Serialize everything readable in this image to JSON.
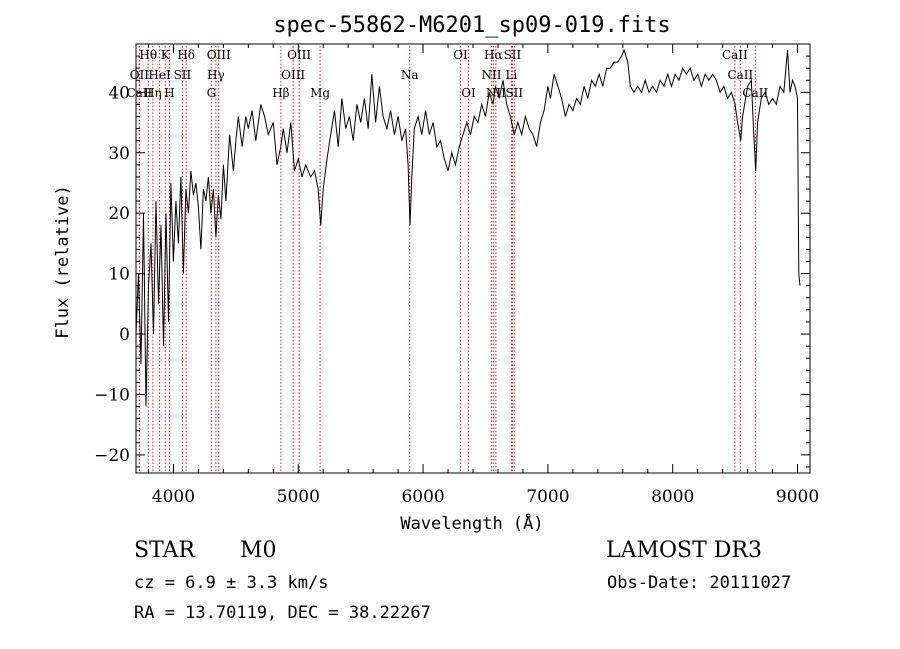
{
  "chart_data": {
    "type": "line",
    "title": "spec-55862-M6201_sp09-019.fits",
    "xlabel": "Wavelength (Å)",
    "ylabel": "Flux (relative)",
    "xlim": [
      3700,
      9100
    ],
    "ylim": [
      -23,
      48
    ],
    "x_ticks": [
      4000,
      5000,
      6000,
      7000,
      8000,
      9000
    ],
    "y_ticks": [
      -20,
      -10,
      0,
      10,
      20,
      30,
      40
    ],
    "grid": false,
    "series": [
      {
        "color": "#000000",
        "points": [
          [
            3700,
            0
          ],
          [
            3720,
            10
          ],
          [
            3740,
            -5
          ],
          [
            3760,
            20
          ],
          [
            3780,
            -12
          ],
          [
            3800,
            8
          ],
          [
            3820,
            15
          ],
          [
            3840,
            0
          ],
          [
            3860,
            22
          ],
          [
            3880,
            5
          ],
          [
            3900,
            18
          ],
          [
            3920,
            -2
          ],
          [
            3940,
            20
          ],
          [
            3960,
            2
          ],
          [
            3980,
            25
          ],
          [
            4000,
            12
          ],
          [
            4020,
            22
          ],
          [
            4040,
            15
          ],
          [
            4060,
            26
          ],
          [
            4080,
            10
          ],
          [
            4100,
            24
          ],
          [
            4120,
            20
          ],
          [
            4140,
            27
          ],
          [
            4160,
            23
          ],
          [
            4180,
            25
          ],
          [
            4200,
            21
          ],
          [
            4220,
            14
          ],
          [
            4240,
            24
          ],
          [
            4260,
            22
          ],
          [
            4280,
            26
          ],
          [
            4300,
            20
          ],
          [
            4320,
            24
          ],
          [
            4340,
            16
          ],
          [
            4360,
            23
          ],
          [
            4380,
            19
          ],
          [
            4400,
            28
          ],
          [
            4420,
            22
          ],
          [
            4450,
            33
          ],
          [
            4480,
            27
          ],
          [
            4500,
            32
          ],
          [
            4520,
            36
          ],
          [
            4550,
            31
          ],
          [
            4580,
            36
          ],
          [
            4600,
            34
          ],
          [
            4630,
            37
          ],
          [
            4660,
            32
          ],
          [
            4700,
            38
          ],
          [
            4730,
            36
          ],
          [
            4760,
            33
          ],
          [
            4800,
            35
          ],
          [
            4830,
            28
          ],
          [
            4860,
            31
          ],
          [
            4880,
            34
          ],
          [
            4910,
            30
          ],
          [
            4940,
            35
          ],
          [
            4970,
            27
          ],
          [
            5000,
            29
          ],
          [
            5030,
            26
          ],
          [
            5060,
            28
          ],
          [
            5100,
            26
          ],
          [
            5130,
            27
          ],
          [
            5160,
            24
          ],
          [
            5180,
            18
          ],
          [
            5200,
            24
          ],
          [
            5230,
            29
          ],
          [
            5260,
            33
          ],
          [
            5290,
            37
          ],
          [
            5320,
            31
          ],
          [
            5350,
            39
          ],
          [
            5380,
            34
          ],
          [
            5410,
            36
          ],
          [
            5440,
            32
          ],
          [
            5470,
            38
          ],
          [
            5500,
            35
          ],
          [
            5530,
            39
          ],
          [
            5560,
            34
          ],
          [
            5590,
            43
          ],
          [
            5620,
            35
          ],
          [
            5650,
            41
          ],
          [
            5680,
            36
          ],
          [
            5710,
            34
          ],
          [
            5740,
            37
          ],
          [
            5770,
            33
          ],
          [
            5800,
            36
          ],
          [
            5830,
            32
          ],
          [
            5860,
            34
          ],
          [
            5880,
            28
          ],
          [
            5895,
            18
          ],
          [
            5910,
            26
          ],
          [
            5930,
            34
          ],
          [
            5960,
            36
          ],
          [
            5990,
            33
          ],
          [
            6020,
            37
          ],
          [
            6050,
            33
          ],
          [
            6080,
            35
          ],
          [
            6110,
            31
          ],
          [
            6140,
            32
          ],
          [
            6170,
            29
          ],
          [
            6200,
            27
          ],
          [
            6230,
            30
          ],
          [
            6260,
            28
          ],
          [
            6290,
            31
          ],
          [
            6320,
            33
          ],
          [
            6350,
            35
          ],
          [
            6380,
            33
          ],
          [
            6410,
            36
          ],
          [
            6440,
            35
          ],
          [
            6470,
            38
          ],
          [
            6500,
            36
          ],
          [
            6530,
            40
          ],
          [
            6560,
            38
          ],
          [
            6580,
            41
          ],
          [
            6610,
            39
          ],
          [
            6640,
            42
          ],
          [
            6670,
            38
          ],
          [
            6700,
            36
          ],
          [
            6730,
            33
          ],
          [
            6760,
            35
          ],
          [
            6790,
            33
          ],
          [
            6820,
            36
          ],
          [
            6850,
            34
          ],
          [
            6880,
            33
          ],
          [
            6910,
            31
          ],
          [
            6940,
            35
          ],
          [
            6970,
            37
          ],
          [
            7000,
            41
          ],
          [
            7020,
            39
          ],
          [
            7050,
            43
          ],
          [
            7080,
            41
          ],
          [
            7110,
            39
          ],
          [
            7140,
            36
          ],
          [
            7170,
            38
          ],
          [
            7200,
            37
          ],
          [
            7230,
            39
          ],
          [
            7260,
            38
          ],
          [
            7290,
            41
          ],
          [
            7320,
            39
          ],
          [
            7350,
            42
          ],
          [
            7380,
            41
          ],
          [
            7410,
            43
          ],
          [
            7440,
            41
          ],
          [
            7470,
            44
          ],
          [
            7500,
            44
          ],
          [
            7530,
            45
          ],
          [
            7560,
            45
          ],
          [
            7590,
            46
          ],
          [
            7610,
            47
          ],
          [
            7640,
            45
          ],
          [
            7660,
            41
          ],
          [
            7690,
            40
          ],
          [
            7720,
            41
          ],
          [
            7750,
            40
          ],
          [
            7780,
            42
          ],
          [
            7810,
            40
          ],
          [
            7840,
            41
          ],
          [
            7870,
            40
          ],
          [
            7900,
            42
          ],
          [
            7930,
            41
          ],
          [
            7960,
            43
          ],
          [
            7990,
            41
          ],
          [
            8020,
            43
          ],
          [
            8050,
            42
          ],
          [
            8080,
            44
          ],
          [
            8110,
            43
          ],
          [
            8140,
            44
          ],
          [
            8170,
            42
          ],
          [
            8200,
            43
          ],
          [
            8230,
            41
          ],
          [
            8260,
            43
          ],
          [
            8290,
            42
          ],
          [
            8320,
            43
          ],
          [
            8350,
            42
          ],
          [
            8380,
            40
          ],
          [
            8410,
            41
          ],
          [
            8440,
            39
          ],
          [
            8470,
            40
          ],
          [
            8500,
            38
          ],
          [
            8520,
            35
          ],
          [
            8545,
            32
          ],
          [
            8560,
            36
          ],
          [
            8600,
            41
          ],
          [
            8630,
            42
          ],
          [
            8650,
            33
          ],
          [
            8665,
            27
          ],
          [
            8680,
            35
          ],
          [
            8710,
            39
          ],
          [
            8740,
            40
          ],
          [
            8770,
            38
          ],
          [
            8800,
            39
          ],
          [
            8830,
            38
          ],
          [
            8860,
            41
          ],
          [
            8890,
            40
          ],
          [
            8920,
            47
          ],
          [
            8940,
            40
          ],
          [
            8960,
            42
          ],
          [
            8980,
            41
          ],
          [
            9000,
            39
          ],
          [
            9010,
            10
          ],
          [
            9020,
            8
          ]
        ]
      }
    ],
    "line_markers": [
      {
        "label": "Hθ",
        "x": 3798,
        "row": 0
      },
      {
        "label": "OII",
        "x": 3727,
        "row": 1
      },
      {
        "label": "CaII",
        "x": 3727,
        "row": 2
      },
      {
        "label": "Hη",
        "x": 3835,
        "row": 2
      },
      {
        "label": "HeI",
        "x": 3889,
        "row": 1
      },
      {
        "label": "K",
        "x": 3934,
        "row": 0
      },
      {
        "label": "SII",
        "x": 4072,
        "row": 1
      },
      {
        "label": "H",
        "x": 3968,
        "row": 2
      },
      {
        "label": "Hδ",
        "x": 4102,
        "row": 0
      },
      {
        "label": "OIII",
        "x": 4363,
        "row": 0
      },
      {
        "label": "Hγ",
        "x": 4340,
        "row": 1
      },
      {
        "label": "G",
        "x": 4304,
        "row": 2
      },
      {
        "label": "Hβ",
        "x": 4861,
        "row": 2
      },
      {
        "label": "OIII",
        "x": 5007,
        "row": 0
      },
      {
        "label": "OIII",
        "x": 4959,
        "row": 1
      },
      {
        "label": "Mg",
        "x": 5175,
        "row": 2
      },
      {
        "label": "Na",
        "x": 5893,
        "row": 1
      },
      {
        "label": "OI",
        "x": 6300,
        "row": 0
      },
      {
        "label": "OI",
        "x": 6364,
        "row": 2
      },
      {
        "label": "Hα",
        "x": 6563,
        "row": 0
      },
      {
        "label": "NII",
        "x": 6548,
        "row": 1
      },
      {
        "label": "NII",
        "x": 6583,
        "row": 2
      },
      {
        "label": "SII",
        "x": 6716,
        "row": 0
      },
      {
        "label": "Li",
        "x": 6708,
        "row": 1
      },
      {
        "label": "SII",
        "x": 6731,
        "row": 2
      },
      {
        "label": "CaII",
        "x": 8498,
        "row": 0
      },
      {
        "label": "CaII",
        "x": 8542,
        "row": 1
      },
      {
        "label": "CaII",
        "x": 8662,
        "row": 2
      }
    ],
    "marker_color": "#cc2222"
  },
  "footer": {
    "object_class": "STAR",
    "subclass": "M0",
    "survey": "LAMOST DR3",
    "cz": "cz = 6.9 ± 3.3 km/s",
    "obs_date": "Obs-Date: 20111027",
    "radec": "RA =  13.70119, DEC =  38.22267"
  }
}
